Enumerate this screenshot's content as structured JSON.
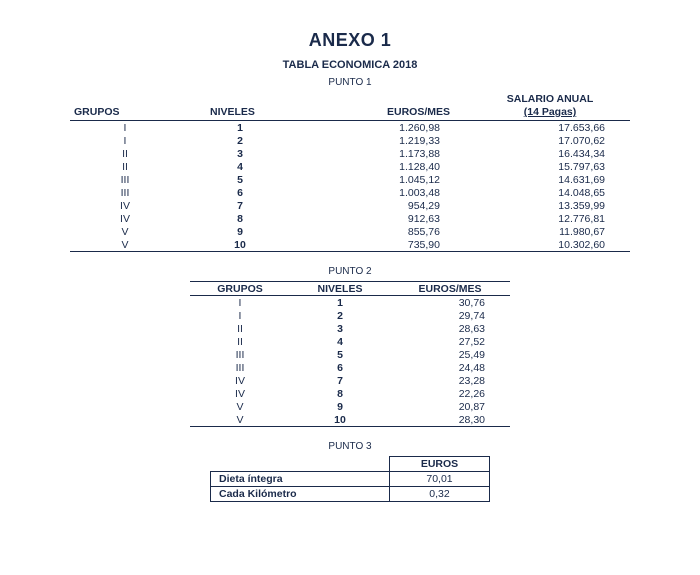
{
  "title": "ANEXO 1",
  "subtitle": "TABLA ECONOMICA 2018",
  "punto1": {
    "heading": "PUNTO 1",
    "columns": [
      "GRUPOS",
      "NIVELES",
      "EUROS/MES",
      "SALARIO ANUAL",
      "(14 Pagas)"
    ],
    "rows": [
      {
        "g": "I",
        "n": "1",
        "e": "1.260,98",
        "s": "17.653,66"
      },
      {
        "g": "I",
        "n": "2",
        "e": "1.219,33",
        "s": "17.070,62"
      },
      {
        "g": "II",
        "n": "3",
        "e": "1.173,88",
        "s": "16.434,34"
      },
      {
        "g": "II",
        "n": "4",
        "e": "1.128,40",
        "s": "15.797,63"
      },
      {
        "g": "III",
        "n": "5",
        "e": "1.045,12",
        "s": "14.631,69"
      },
      {
        "g": "III",
        "n": "6",
        "e": "1.003,48",
        "s": "14.048,65"
      },
      {
        "g": "IV",
        "n": "7",
        "e": "954,29",
        "s": "13.359,99"
      },
      {
        "g": "IV",
        "n": "8",
        "e": "912,63",
        "s": "12.776,81"
      },
      {
        "g": "V",
        "n": "9",
        "e": "855,76",
        "s": "11.980,67"
      },
      {
        "g": "V",
        "n": "10",
        "e": "735,90",
        "s": "10.302,60"
      }
    ]
  },
  "punto2": {
    "heading": "PUNTO 2",
    "columns": [
      "GRUPOS",
      "NIVELES",
      "EUROS/MES"
    ],
    "rows": [
      {
        "g": "I",
        "n": "1",
        "e": "30,76"
      },
      {
        "g": "I",
        "n": "2",
        "e": "29,74"
      },
      {
        "g": "II",
        "n": "3",
        "e": "28,63"
      },
      {
        "g": "II",
        "n": "4",
        "e": "27,52"
      },
      {
        "g": "III",
        "n": "5",
        "e": "25,49"
      },
      {
        "g": "III",
        "n": "6",
        "e": "24,48"
      },
      {
        "g": "IV",
        "n": "7",
        "e": "23,28"
      },
      {
        "g": "IV",
        "n": "8",
        "e": "22,26"
      },
      {
        "g": "V",
        "n": "9",
        "e": "20,87"
      },
      {
        "g": "V",
        "n": "10",
        "e": "28,30"
      }
    ]
  },
  "punto3": {
    "heading": "PUNTO 3",
    "col": "EUROS",
    "rows": [
      {
        "label": "Dieta íntegra",
        "val": "70,01"
      },
      {
        "label": "Cada Kilómetro",
        "val": "0,32"
      }
    ]
  }
}
